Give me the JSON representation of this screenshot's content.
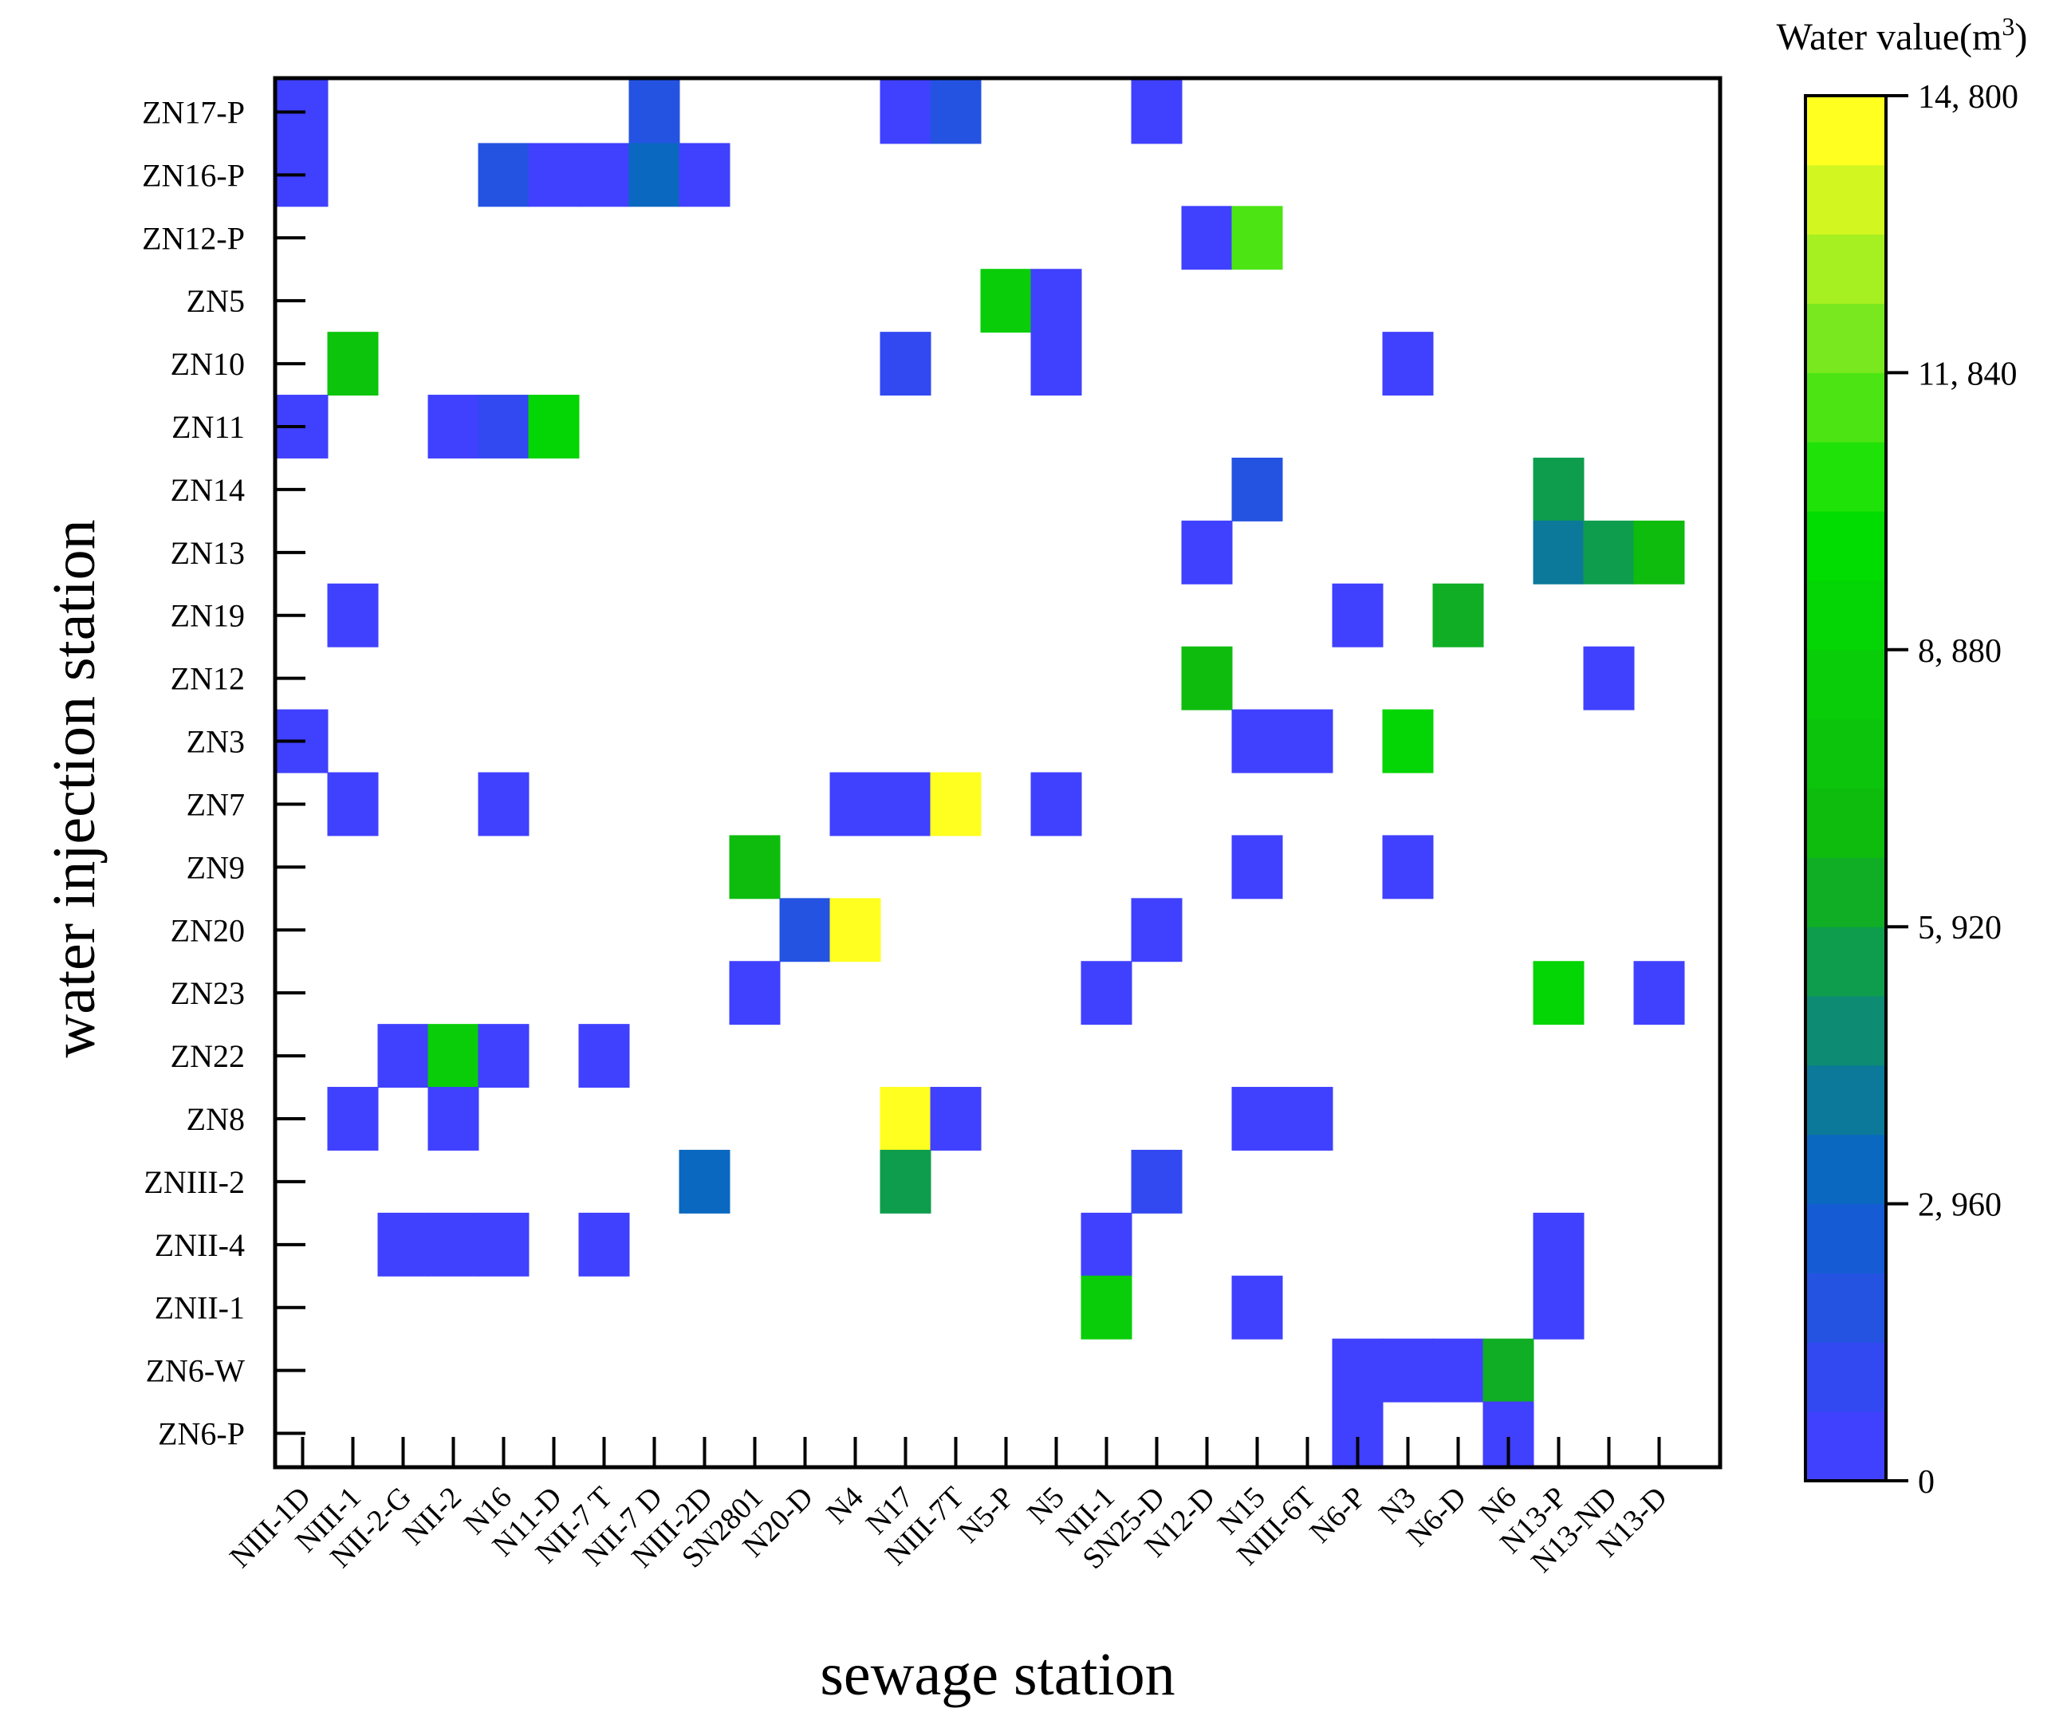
{
  "chart_data": {
    "type": "heatmap",
    "title": "",
    "xlabel": "sewage station",
    "ylabel": "water injection station",
    "x": [
      "NIII-1D",
      "NIII-1",
      "NII-2-G",
      "NII-2",
      "N16",
      "N11-D",
      "NII-7 T",
      "NII-7 D",
      "NIII-2D",
      "SN2801",
      "N20-D",
      "N4",
      "N17",
      "NIII-7T",
      "N5-P",
      "N5",
      "NII-1",
      "SN25-D",
      "N12-D",
      "N15",
      "NIII-6T",
      "N6-P",
      "N3",
      "N6-D",
      "N6",
      "N13-P",
      "N13-ND",
      "N13-D"
    ],
    "y": [
      "ZN17-P",
      "ZN16-P",
      "ZN12-P",
      "ZN5",
      "ZN10",
      "ZN11",
      "ZN14",
      "ZN13",
      "ZN19",
      "ZN12",
      "ZN3",
      "ZN7",
      "ZN9",
      "ZN20",
      "ZN23",
      "ZN22",
      "ZN8",
      "ZNIII-2",
      "ZNII-4",
      "ZNII-1",
      "ZN6-W",
      "ZN6-P"
    ],
    "colorbar": {
      "title_prefix": "Water value(m",
      "title_sup": "3",
      "title_suffix": ")",
      "ticks": [
        0,
        2960,
        5920,
        8880,
        11840,
        14800
      ],
      "tick_labels": [
        "0",
        "2, 960",
        "5, 920",
        "8, 880",
        "11, 840",
        "14, 800"
      ],
      "range": [
        0,
        14800
      ],
      "levels": 20
    },
    "colors": {
      "stops": [
        "#4040ff",
        "#0a64c8",
        "#10b810",
        "#00e000",
        "#80e820",
        "#ffff20"
      ],
      "stop_positions": [
        0,
        0.2,
        0.45,
        0.7,
        0.85,
        1.0
      ]
    },
    "grid": false,
    "cells": [
      {
        "x": "NIII-1D",
        "y": "ZN17-P",
        "value": 300
      },
      {
        "x": "NII-7 D",
        "y": "ZN17-P",
        "value": 2100
      },
      {
        "x": "N17",
        "y": "ZN17-P",
        "value": 300
      },
      {
        "x": "NIII-7T",
        "y": "ZN17-P",
        "value": 2200
      },
      {
        "x": "SN25-D",
        "y": "ZN17-P",
        "value": 300
      },
      {
        "x": "NIII-1D",
        "y": "ZN16-P",
        "value": 300
      },
      {
        "x": "N16",
        "y": "ZN16-P",
        "value": 2200
      },
      {
        "x": "N11-D",
        "y": "ZN16-P",
        "value": 300
      },
      {
        "x": "NII-7 T",
        "y": "ZN16-P",
        "value": 300
      },
      {
        "x": "NII-7 D",
        "y": "ZN16-P",
        "value": 3400
      },
      {
        "x": "NIII-2D",
        "y": "ZN16-P",
        "value": 300
      },
      {
        "x": "N12-D",
        "y": "ZN12-P",
        "value": 300
      },
      {
        "x": "N15",
        "y": "ZN12-P",
        "value": 11600
      },
      {
        "x": "N5-P",
        "y": "ZN5",
        "value": 8200
      },
      {
        "x": "N5",
        "y": "ZN5",
        "value": 300
      },
      {
        "x": "NIII-1",
        "y": "ZN10",
        "value": 7600
      },
      {
        "x": "N17",
        "y": "ZN10",
        "value": 1100
      },
      {
        "x": "N5",
        "y": "ZN10",
        "value": 300
      },
      {
        "x": "N3",
        "y": "ZN10",
        "value": 300
      },
      {
        "x": "NIII-1D",
        "y": "ZN11",
        "value": 300
      },
      {
        "x": "NII-2",
        "y": "ZN11",
        "value": 300
      },
      {
        "x": "N16",
        "y": "ZN11",
        "value": 1100
      },
      {
        "x": "N11-D",
        "y": "ZN11",
        "value": 9000
      },
      {
        "x": "N15",
        "y": "ZN14",
        "value": 2100
      },
      {
        "x": "N13-P",
        "y": "ZN14",
        "value": 5200
      },
      {
        "x": "N12-D",
        "y": "ZN13",
        "value": 300
      },
      {
        "x": "N13-P",
        "y": "ZN13",
        "value": 4100
      },
      {
        "x": "N13-ND",
        "y": "ZN13",
        "value": 5800
      },
      {
        "x": "N13-D",
        "y": "ZN13",
        "value": 7000
      },
      {
        "x": "NIII-1",
        "y": "ZN19",
        "value": 300
      },
      {
        "x": "N6-P",
        "y": "ZN19",
        "value": 300
      },
      {
        "x": "N6-D",
        "y": "ZN19",
        "value": 6400
      },
      {
        "x": "N12-D",
        "y": "ZN12",
        "value": 7000
      },
      {
        "x": "N13-ND",
        "y": "ZN12",
        "value": 300
      },
      {
        "x": "NIII-1D",
        "y": "ZN3",
        "value": 300
      },
      {
        "x": "N15",
        "y": "ZN3",
        "value": 300
      },
      {
        "x": "NIII-6T",
        "y": "ZN3",
        "value": 300
      },
      {
        "x": "N3",
        "y": "ZN3",
        "value": 9300
      },
      {
        "x": "NIII-1",
        "y": "ZN7",
        "value": 300
      },
      {
        "x": "N16",
        "y": "ZN7",
        "value": 300
      },
      {
        "x": "N4",
        "y": "ZN7",
        "value": 300
      },
      {
        "x": "N17",
        "y": "ZN7",
        "value": 300
      },
      {
        "x": "NIII-7T",
        "y": "ZN7",
        "value": 14800
      },
      {
        "x": "N5",
        "y": "ZN7",
        "value": 300
      },
      {
        "x": "SN2801",
        "y": "ZN9",
        "value": 7000
      },
      {
        "x": "N15",
        "y": "ZN9",
        "value": 300
      },
      {
        "x": "N3",
        "y": "ZN9",
        "value": 300
      },
      {
        "x": "N20-D",
        "y": "ZN20",
        "value": 2100
      },
      {
        "x": "N4",
        "y": "ZN20",
        "value": 14800
      },
      {
        "x": "SN25-D",
        "y": "ZN20",
        "value": 300
      },
      {
        "x": "SN2801",
        "y": "ZN23",
        "value": 300
      },
      {
        "x": "NII-1",
        "y": "ZN23",
        "value": 300
      },
      {
        "x": "N13-P",
        "y": "ZN23",
        "value": 9300
      },
      {
        "x": "N13-D",
        "y": "ZN23",
        "value": 300
      },
      {
        "x": "NII-2-G",
        "y": "ZN22",
        "value": 300
      },
      {
        "x": "NII-2",
        "y": "ZN22",
        "value": 8800
      },
      {
        "x": "N16",
        "y": "ZN22",
        "value": 300
      },
      {
        "x": "NII-7 T",
        "y": "ZN22",
        "value": 300
      },
      {
        "x": "NIII-1",
        "y": "ZN8",
        "value": 300
      },
      {
        "x": "NII-2",
        "y": "ZN8",
        "value": 300
      },
      {
        "x": "N17",
        "y": "ZN8",
        "value": 14800
      },
      {
        "x": "NIII-7T",
        "y": "ZN8",
        "value": 300
      },
      {
        "x": "N15",
        "y": "ZN8",
        "value": 300
      },
      {
        "x": "NIII-6T",
        "y": "ZN8",
        "value": 300
      },
      {
        "x": "NIII-2D",
        "y": "ZNIII-2",
        "value": 3400
      },
      {
        "x": "N17",
        "y": "ZNIII-2",
        "value": 5200
      },
      {
        "x": "SN25-D",
        "y": "ZNIII-2",
        "value": 1300
      },
      {
        "x": "NII-2-G",
        "y": "ZNII-4",
        "value": 300
      },
      {
        "x": "NII-2",
        "y": "ZNII-4",
        "value": 300
      },
      {
        "x": "N16",
        "y": "ZNII-4",
        "value": 300
      },
      {
        "x": "NII-7 T",
        "y": "ZNII-4",
        "value": 300
      },
      {
        "x": "NII-1",
        "y": "ZNII-4",
        "value": 300
      },
      {
        "x": "N13-P",
        "y": "ZNII-4",
        "value": 300
      },
      {
        "x": "NII-1",
        "y": "ZNII-1",
        "value": 8200
      },
      {
        "x": "N15",
        "y": "ZNII-1",
        "value": 300
      },
      {
        "x": "N13-P",
        "y": "ZNII-1",
        "value": 300
      },
      {
        "x": "N6-P",
        "y": "ZN6-W",
        "value": 300
      },
      {
        "x": "N3",
        "y": "ZN6-W",
        "value": 300
      },
      {
        "x": "N6-D",
        "y": "ZN6-W",
        "value": 300
      },
      {
        "x": "N6",
        "y": "ZN6-W",
        "value": 6400
      },
      {
        "x": "N6-P",
        "y": "ZN6-P",
        "value": 300
      },
      {
        "x": "N6",
        "y": "ZN6-P",
        "value": 300
      }
    ]
  }
}
